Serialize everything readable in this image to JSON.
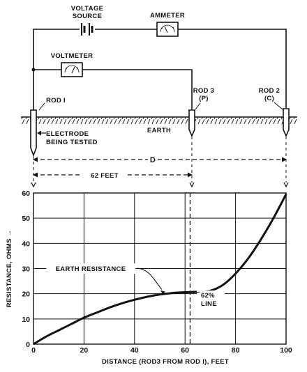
{
  "schematic": {
    "voltage_source": [
      "VOLTAGE",
      "SOURCE"
    ],
    "ammeter": "AMMETER",
    "voltmeter": "VOLTMETER",
    "rod1": "ROD I",
    "rod3": [
      "ROD 3",
      "(P)"
    ],
    "rod2": [
      "ROD 2",
      "(C)"
    ],
    "earth": "EARTH",
    "electrode": [
      "ELECTRODE",
      "BEING TESTED"
    ],
    "distance_d": "D",
    "distance_62": "62 FEET"
  },
  "chart_data": {
    "type": "line",
    "xlabel": "DISTANCE (ROD3 FROM ROD I), FEET",
    "ylabel": "RESISTANCE, OHMS →",
    "xlim": [
      0,
      100
    ],
    "ylim": [
      0,
      60
    ],
    "xticks": [
      "0",
      "20",
      "40",
      "60",
      "80",
      "100"
    ],
    "yticks": [
      "0",
      "10",
      "20",
      "30",
      "40",
      "50",
      "60"
    ],
    "grid": true,
    "series": [
      {
        "name": "EARTH RESISTANCE",
        "x": [
          0,
          5,
          10,
          15,
          20,
          25,
          30,
          35,
          40,
          45,
          50,
          55,
          60,
          65,
          70,
          75,
          80,
          85,
          90,
          95,
          100
        ],
        "y": [
          0,
          3,
          5.5,
          8,
          10.5,
          12.5,
          14.5,
          16.2,
          17.6,
          18.8,
          19.7,
          20.3,
          20.6,
          20.8,
          21.2,
          23.5,
          28,
          34,
          41.5,
          50,
          59.5
        ]
      }
    ],
    "annotations": {
      "curve_label": "EARTH RESISTANCE",
      "line_label": [
        "62%",
        "LINE"
      ],
      "line_x": 62
    }
  }
}
